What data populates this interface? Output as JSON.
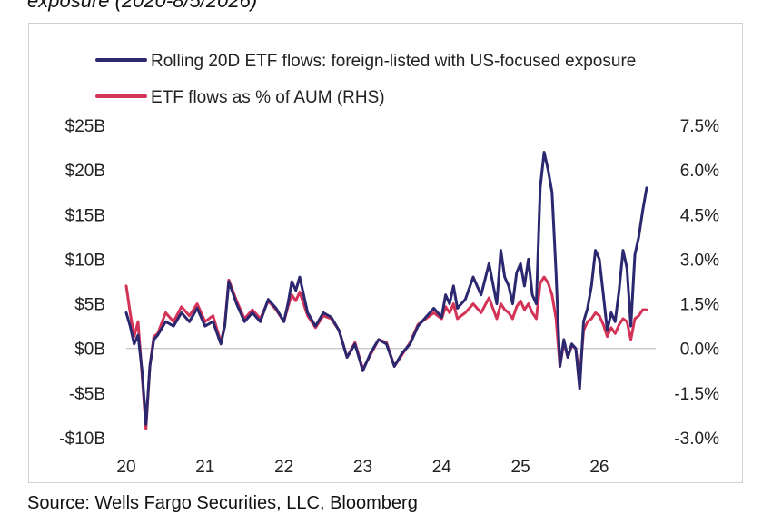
{
  "title_fragment": "exposure (2020-8/5/2026)",
  "source": "Source: Wells Fargo Securities, LLC, Bloomberg",
  "chart_data": {
    "type": "line",
    "title": "",
    "legend_position": "top-left",
    "xlabel": "",
    "ylabel_left": "",
    "ylabel_right": "",
    "x_tick_labels": [
      "20",
      "21",
      "22",
      "23",
      "24",
      "25",
      "26"
    ],
    "left_axis": {
      "ylim": [
        -10,
        25
      ],
      "ticks": [
        25,
        20,
        15,
        10,
        5,
        0,
        -5,
        -10
      ],
      "tick_labels": [
        "$25B",
        "$20B",
        "$15B",
        "$10B",
        "$5B",
        "$0B",
        "-$5B",
        "-$10B"
      ]
    },
    "right_axis": {
      "ylim": [
        -3.0,
        7.5
      ],
      "ticks": [
        7.5,
        6.0,
        4.5,
        3.0,
        1.5,
        0.0,
        -1.5,
        -3.0
      ],
      "tick_labels": [
        "7.5%",
        "6.0%",
        "4.5%",
        "3.0%",
        "1.5%",
        "0.0%",
        "-1.5%",
        "-3.0%"
      ]
    },
    "grid": false,
    "series": [
      {
        "name": "Rolling 20D ETF flows: foreign-listed with US-focused exposure",
        "axis": "left",
        "color": "#2b2870",
        "units": "USD bn",
        "x": [
          2020.0,
          2020.05,
          2020.1,
          2020.15,
          2020.2,
          2020.25,
          2020.3,
          2020.35,
          2020.4,
          2020.5,
          2020.6,
          2020.7,
          2020.8,
          2020.9,
          2021.0,
          2021.1,
          2021.2,
          2021.25,
          2021.3,
          2021.4,
          2021.5,
          2021.6,
          2021.7,
          2021.8,
          2021.9,
          2022.0,
          2022.05,
          2022.1,
          2022.15,
          2022.2,
          2022.3,
          2022.4,
          2022.5,
          2022.6,
          2022.7,
          2022.8,
          2022.9,
          2023.0,
          2023.1,
          2023.2,
          2023.3,
          2023.4,
          2023.5,
          2023.6,
          2023.7,
          2023.8,
          2023.9,
          2024.0,
          2024.05,
          2024.1,
          2024.15,
          2024.2,
          2024.3,
          2024.4,
          2024.5,
          2024.6,
          2024.7,
          2024.75,
          2024.8,
          2024.85,
          2024.9,
          2024.95,
          2025.0,
          2025.05,
          2025.1,
          2025.15,
          2025.2,
          2025.25,
          2025.3,
          2025.35,
          2025.4,
          2025.45,
          2025.5,
          2025.55,
          2025.6,
          2025.65,
          2025.7,
          2025.75,
          2025.8,
          2025.85,
          2025.9,
          2025.95,
          2026.0,
          2026.05,
          2026.1,
          2026.15,
          2026.2,
          2026.25,
          2026.3,
          2026.35,
          2026.4,
          2026.45,
          2026.5,
          2026.55,
          2026.6
        ],
        "y": [
          4.0,
          2.5,
          0.5,
          1.5,
          -2.5,
          -8.5,
          -2.0,
          1.0,
          1.5,
          3.0,
          2.5,
          4.0,
          3.0,
          4.5,
          2.5,
          3.0,
          0.5,
          2.5,
          7.5,
          5.0,
          3.0,
          4.0,
          3.0,
          5.5,
          4.5,
          3.0,
          5.0,
          7.5,
          6.5,
          8.0,
          4.0,
          2.5,
          4.0,
          3.5,
          2.0,
          -1.0,
          0.5,
          -2.5,
          -0.5,
          1.0,
          0.5,
          -2.0,
          -0.5,
          0.5,
          2.5,
          3.5,
          4.5,
          3.5,
          6.0,
          5.0,
          7.0,
          4.5,
          5.5,
          8.0,
          6.0,
          9.5,
          5.0,
          11.0,
          8.0,
          7.0,
          5.0,
          8.5,
          9.5,
          7.0,
          10.0,
          6.0,
          5.0,
          18.0,
          22.0,
          20.0,
          17.5,
          8.5,
          -2.0,
          1.0,
          -1.0,
          0.5,
          0.0,
          -4.5,
          3.0,
          4.5,
          7.0,
          11.0,
          10.0,
          6.0,
          2.0,
          4.0,
          3.0,
          6.5,
          11.0,
          9.0,
          2.5,
          10.5,
          12.5,
          15.5,
          18.0
        ]
      },
      {
        "name": "ETF flows as % of AUM (RHS)",
        "axis": "right",
        "color": "#d43358",
        "units": "%",
        "x": [
          2020.0,
          2020.05,
          2020.1,
          2020.15,
          2020.2,
          2020.25,
          2020.3,
          2020.35,
          2020.4,
          2020.5,
          2020.6,
          2020.7,
          2020.8,
          2020.9,
          2021.0,
          2021.1,
          2021.2,
          2021.25,
          2021.3,
          2021.4,
          2021.5,
          2021.6,
          2021.7,
          2021.8,
          2021.9,
          2022.0,
          2022.05,
          2022.1,
          2022.15,
          2022.2,
          2022.3,
          2022.4,
          2022.5,
          2022.6,
          2022.7,
          2022.8,
          2022.9,
          2023.0,
          2023.1,
          2023.2,
          2023.3,
          2023.4,
          2023.5,
          2023.6,
          2023.7,
          2023.8,
          2023.9,
          2024.0,
          2024.05,
          2024.1,
          2024.15,
          2024.2,
          2024.3,
          2024.4,
          2024.5,
          2024.6,
          2024.7,
          2024.75,
          2024.8,
          2024.85,
          2024.9,
          2024.95,
          2025.0,
          2025.05,
          2025.1,
          2025.15,
          2025.2,
          2025.25,
          2025.3,
          2025.35,
          2025.4,
          2025.45,
          2025.5,
          2025.55,
          2025.6,
          2025.65,
          2025.7,
          2025.75,
          2025.8,
          2025.85,
          2025.9,
          2025.95,
          2026.0,
          2026.05,
          2026.1,
          2026.15,
          2026.2,
          2026.25,
          2026.3,
          2026.35,
          2026.4,
          2026.45,
          2026.5,
          2026.55,
          2026.6
        ],
        "y": [
          2.1,
          1.2,
          0.4,
          0.9,
          -0.9,
          -2.7,
          -0.6,
          0.4,
          0.5,
          1.2,
          0.9,
          1.4,
          1.1,
          1.5,
          0.9,
          1.1,
          0.2,
          0.8,
          2.3,
          1.6,
          1.0,
          1.3,
          1.0,
          1.6,
          1.3,
          0.9,
          1.4,
          1.8,
          1.6,
          1.9,
          1.1,
          0.7,
          1.1,
          1.0,
          0.6,
          -0.3,
          0.2,
          -0.7,
          -0.2,
          0.3,
          0.2,
          -0.6,
          -0.2,
          0.2,
          0.8,
          1.0,
          1.2,
          1.0,
          1.4,
          1.2,
          1.5,
          1.0,
          1.2,
          1.5,
          1.2,
          1.7,
          1.0,
          1.5,
          1.3,
          1.2,
          1.0,
          1.4,
          1.6,
          1.3,
          1.5,
          1.2,
          1.0,
          2.2,
          2.4,
          2.2,
          1.8,
          1.0,
          -0.6,
          0.2,
          -0.3,
          0.1,
          0.0,
          -1.0,
          0.6,
          0.9,
          1.0,
          1.2,
          1.1,
          0.8,
          0.4,
          0.7,
          0.5,
          0.8,
          1.0,
          0.9,
          0.3,
          1.0,
          1.1,
          1.3,
          1.3
        ]
      }
    ]
  }
}
